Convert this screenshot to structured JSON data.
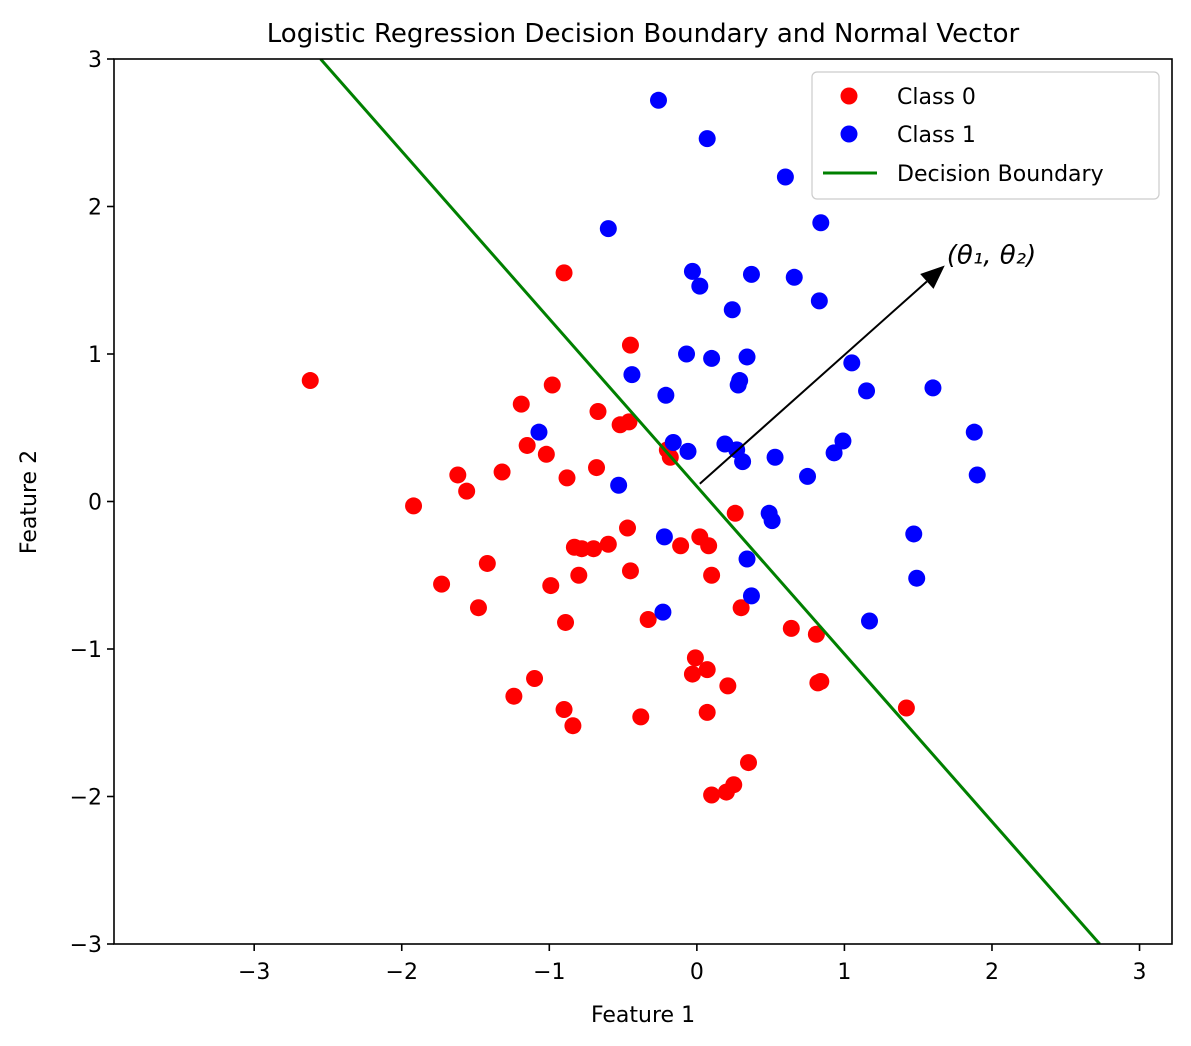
{
  "chart_data": {
    "type": "scatter",
    "title": "Logistic Regression Decision Boundary and Normal Vector",
    "xlabel": "Feature 1",
    "ylabel": "Feature 2",
    "xlim": [
      -3.95,
      3.22
    ],
    "ylim": [
      -3,
      3
    ],
    "x_ticks": [
      -3,
      -2,
      -1,
      0,
      1,
      2,
      3
    ],
    "x_tick_labels": [
      "−3",
      "−2",
      "−1",
      "0",
      "1",
      "2",
      "3"
    ],
    "y_ticks": [
      -3,
      -2,
      -1,
      0,
      1,
      2,
      3
    ],
    "y_tick_labels": [
      "−3",
      "−2",
      "−1",
      "0",
      "1",
      "2",
      "3"
    ],
    "grid": false,
    "legend_position": "top-right",
    "series": [
      {
        "name": "Class 0",
        "color": "#ff0000",
        "points": [
          [
            -2.62,
            0.82
          ],
          [
            -1.92,
            -0.03
          ],
          [
            -1.73,
            -0.56
          ],
          [
            -1.62,
            0.18
          ],
          [
            -1.56,
            0.07
          ],
          [
            -1.48,
            -0.72
          ],
          [
            -1.42,
            -0.42
          ],
          [
            -1.32,
            0.2
          ],
          [
            -1.24,
            -1.32
          ],
          [
            -1.19,
            0.66
          ],
          [
            -1.15,
            0.38
          ],
          [
            -1.1,
            -1.2
          ],
          [
            -1.02,
            0.32
          ],
          [
            -0.99,
            -0.57
          ],
          [
            -0.98,
            0.79
          ],
          [
            -0.9,
            -1.41
          ],
          [
            -0.9,
            1.55
          ],
          [
            -0.88,
            0.16
          ],
          [
            -0.89,
            -0.82
          ],
          [
            -0.84,
            -1.52
          ],
          [
            -0.83,
            -0.31
          ],
          [
            -0.78,
            -0.32
          ],
          [
            -0.8,
            -0.5
          ],
          [
            -0.7,
            -0.32
          ],
          [
            -0.68,
            0.23
          ],
          [
            -0.67,
            0.61
          ],
          [
            -0.6,
            -0.29
          ],
          [
            -0.52,
            0.52
          ],
          [
            -0.46,
            0.54
          ],
          [
            -0.47,
            -0.18
          ],
          [
            -0.45,
            -0.47
          ],
          [
            -0.45,
            1.06
          ],
          [
            -0.38,
            -1.46
          ],
          [
            -0.33,
            -0.8
          ],
          [
            -0.2,
            0.35
          ],
          [
            -0.18,
            0.3
          ],
          [
            -0.11,
            -0.3
          ],
          [
            -0.03,
            -1.17
          ],
          [
            -0.01,
            -1.06
          ],
          [
            0.02,
            -0.24
          ],
          [
            0.07,
            -1.14
          ],
          [
            0.07,
            -1.43
          ],
          [
            0.08,
            -0.3
          ],
          [
            0.1,
            -0.5
          ],
          [
            0.1,
            -1.99
          ],
          [
            0.2,
            -1.97
          ],
          [
            0.21,
            -1.25
          ],
          [
            0.25,
            -1.92
          ],
          [
            0.26,
            -0.08
          ],
          [
            0.3,
            -0.72
          ],
          [
            0.35,
            -1.77
          ],
          [
            0.64,
            -0.86
          ],
          [
            0.81,
            -0.9
          ],
          [
            0.82,
            -1.23
          ],
          [
            0.84,
            -1.22
          ],
          [
            1.42,
            -1.4
          ]
        ]
      },
      {
        "name": "Class 1",
        "color": "#0000ff",
        "points": [
          [
            -1.07,
            0.47
          ],
          [
            -0.6,
            1.85
          ],
          [
            -0.53,
            0.11
          ],
          [
            -0.44,
            0.86
          ],
          [
            -0.26,
            2.72
          ],
          [
            -0.22,
            -0.24
          ],
          [
            -0.23,
            -0.75
          ],
          [
            -0.21,
            0.72
          ],
          [
            -0.16,
            0.4
          ],
          [
            -0.06,
            0.34
          ],
          [
            -0.07,
            1.0
          ],
          [
            -0.03,
            1.56
          ],
          [
            0.02,
            1.46
          ],
          [
            0.07,
            2.46
          ],
          [
            0.1,
            0.97
          ],
          [
            0.19,
            0.39
          ],
          [
            0.24,
            1.3
          ],
          [
            0.27,
            0.35
          ],
          [
            0.28,
            0.79
          ],
          [
            0.29,
            0.82
          ],
          [
            0.31,
            0.27
          ],
          [
            0.34,
            -0.39
          ],
          [
            0.34,
            0.98
          ],
          [
            0.37,
            1.54
          ],
          [
            0.37,
            -0.64
          ],
          [
            0.49,
            -0.08
          ],
          [
            0.51,
            -0.13
          ],
          [
            0.53,
            0.3
          ],
          [
            0.6,
            2.2
          ],
          [
            0.66,
            1.52
          ],
          [
            0.75,
            0.17
          ],
          [
            0.83,
            1.36
          ],
          [
            0.84,
            1.89
          ],
          [
            0.93,
            0.33
          ],
          [
            0.99,
            0.41
          ],
          [
            1.05,
            0.94
          ],
          [
            1.15,
            0.75
          ],
          [
            1.17,
            -0.81
          ],
          [
            1.47,
            -0.22
          ],
          [
            1.49,
            -0.52
          ],
          [
            1.6,
            0.77
          ],
          [
            1.88,
            0.47
          ],
          [
            1.9,
            0.18
          ]
        ]
      }
    ],
    "decision_boundary": {
      "name": "Decision Boundary",
      "color": "#008000",
      "points": [
        [
          -2.55,
          3.0
        ],
        [
          2.73,
          -3.0
        ]
      ]
    },
    "normal_vector": {
      "from": [
        0.02,
        0.12
      ],
      "to": [
        1.68,
        1.6
      ],
      "label": "(θ₁, θ₂)"
    }
  }
}
